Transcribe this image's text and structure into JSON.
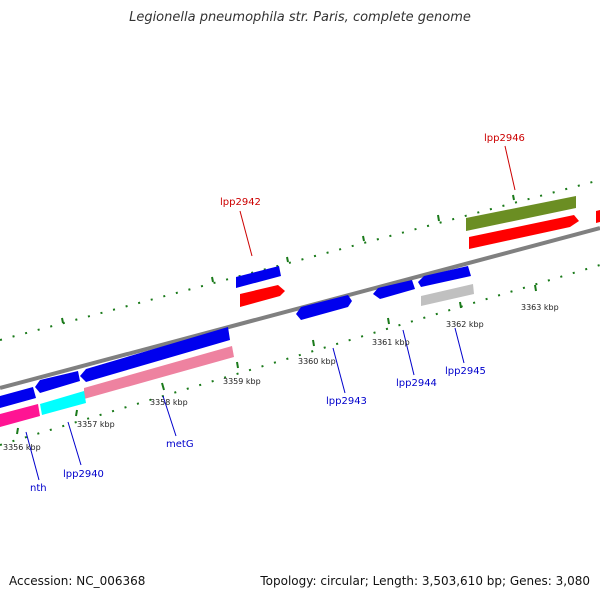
{
  "title": "Legionella pneumophila str. Paris, complete genome",
  "footer": {
    "accession": "Accession: NC_006368",
    "summary": "Topology: circular; Length: 3,503,610 bp; Genes: 3,080"
  },
  "colors": {
    "forward_cds": "#0000ee",
    "reverse_cds": "#0000ee",
    "rna": "#ff0000",
    "olive_feature": "#6b8e23",
    "pink_feature": "#ee82a0",
    "magenta_feature": "#ff1493",
    "cyan_feature": "#00ffff",
    "gray_feature": "#c0c0c0",
    "backbone": "#808080",
    "ticks": "#1a7a1a",
    "label_blue": "#0000cc",
    "label_red": "#cc0000"
  },
  "ticks": [
    {
      "label": "3356 kbp"
    },
    {
      "label": "3357 kbp"
    },
    {
      "label": "3358 kbp"
    },
    {
      "label": "3359 kbp"
    },
    {
      "label": "3360 kbp"
    },
    {
      "label": "3361 kbp"
    },
    {
      "label": "3362 kbp"
    },
    {
      "label": "3363 kbp"
    }
  ],
  "genes": [
    {
      "name": "nth"
    },
    {
      "name": "lpp2940"
    },
    {
      "name": "metG"
    },
    {
      "name": "lpp2942"
    },
    {
      "name": "lpp2943"
    },
    {
      "name": "lpp2944"
    },
    {
      "name": "lpp2945"
    },
    {
      "name": "lpp2946"
    }
  ]
}
